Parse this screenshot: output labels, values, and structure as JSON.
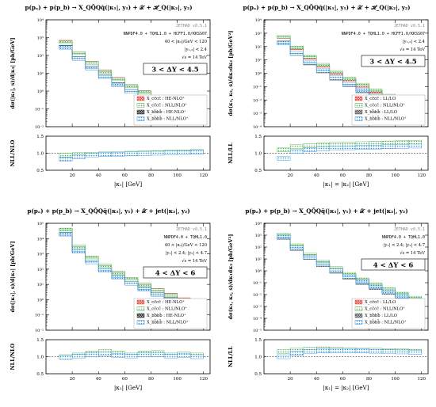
{
  "chart_data": [
    {
      "type": "bar",
      "title": "p(pₐ) + p(p_b) → X_QQ̄Qq̄(|κ₁|, y₁) + 𝒳 + ℋ_Q(|κ₂|, y₂)",
      "jethad": "JETHAD v0.5.1",
      "pdf": "NNPDF4.0 + TQHL1.0 + HCFF1.0/KKSS07",
      "cut1": "40 < |κ₂|/GeV < 120",
      "cut2": "|y₁,₂| < 2.4",
      "energy": "√s = 14 TeV",
      "dy_range": "3 < ΔY < 4.5",
      "xlabel": "|κ₁| [GeV]",
      "ylabel": "dσ(|κ₁|, s)/d|κ₁| [pb/GeV]",
      "ratio_label": "NLL/NLO",
      "xlim": [
        0,
        125
      ],
      "ylim": [
        0.01,
        10000
      ],
      "yscale": "log",
      "ratio_ylim": [
        0.5,
        1.5
      ],
      "xticks": [
        20,
        40,
        60,
        80,
        100,
        120
      ],
      "yticks": [
        "10⁻²",
        "10⁻¹",
        "10⁰",
        "10¹",
        "10²",
        "10³",
        "10⁴"
      ],
      "ratio_yticks": [
        "0.5",
        "1.0",
        "1.5"
      ],
      "legend": [
        "X_cc̄cc̄ : HE-NLO⁺",
        "X_cc̄cc̄ : NLL/NLO⁺",
        "X_bb̄bb̄ : HE-NLO⁺",
        "X_bb̄bb̄ : NLL/NLO⁺"
      ],
      "categories": [
        "10-20",
        "20-30",
        "30-40",
        "40-50",
        "50-60",
        "60-70",
        "70-80",
        "80-90",
        "90-100",
        "100-110",
        "110-120"
      ],
      "series": [
        {
          "name": "X_cc̄cc̄ : HE-NLO⁺",
          "color": "#e8453c",
          "values": [
            600,
            140,
            40,
            13,
            5,
            2,
            0.9,
            0.45,
            0.22,
            0.11,
            0.06
          ]
        },
        {
          "name": "X_cc̄cc̄ : NLL/NLO⁺",
          "color": "#4caf50",
          "values": [
            550,
            135,
            38,
            12,
            4.6,
            1.9,
            0.85,
            0.42,
            0.2,
            0.1,
            0.055
          ]
        },
        {
          "name": "X_bb̄bb̄ : HE-NLO⁺",
          "color": "#222222",
          "values": [
            300,
            70,
            20,
            6.5,
            2.4,
            1.0,
            0.45,
            0.2,
            0.1,
            0.05,
            0.025
          ]
        },
        {
          "name": "X_bb̄bb̄ : NLL/NLO⁺",
          "color": "#2e8fd6",
          "values": [
            280,
            66,
            19,
            6.1,
            2.2,
            0.95,
            0.42,
            0.19,
            0.095,
            0.047,
            0.023
          ]
        }
      ],
      "ratio_series": [
        {
          "name": "X_cc̄cc̄",
          "color": "#4caf50",
          "values": [
            0.95,
            0.96,
            0.97,
            0.98,
            0.99,
            1.0,
            1.01,
            1.02,
            1.03,
            1.04,
            1.05
          ]
        },
        {
          "name": "X_bb̄bb̄",
          "color": "#2e8fd6",
          "values": [
            0.82,
            0.9,
            0.94,
            0.96,
            0.97,
            0.98,
            0.99,
            1.0,
            1.01,
            1.02,
            1.03
          ]
        }
      ]
    },
    {
      "type": "bar",
      "title": "p(pₐ) + p(p_b) → X_QQ̄Qq̄(|κ₁|, y₁) + 𝒳 + ℋ_Q(|κ₂|, y₂)",
      "jethad": "JETHAD v0.5.1",
      "pdf": "NNPDF4.0 + TQHL1.0 + HCFF1.0/KKSS07",
      "cut1": "|y₁,₂| < 2.4",
      "cut2": "",
      "energy": "√s = 14 TeV",
      "dy_range": "3 < ΔY < 4.5",
      "xlabel": "|κ₁| = |κ₂| [GeV]",
      "ylabel": "dσ(κ₁, κ₂, s)/dκ₁dκ₂ [pb/GeV²]",
      "ratio_label": "NLL/LL",
      "xlim": [
        0,
        125
      ],
      "ylim": [
        0.0001,
        10000
      ],
      "yscale": "log",
      "ratio_ylim": [
        0.5,
        1.5
      ],
      "xticks": [
        20,
        40,
        60,
        80,
        100,
        120
      ],
      "yticks": [
        "10⁻⁴",
        "10⁻³",
        "10⁻²",
        "10⁻¹",
        "10⁰",
        "10¹",
        "10²",
        "10³",
        "10⁴"
      ],
      "ratio_yticks": [
        "0.5",
        "1.0",
        "1.5"
      ],
      "legend": [
        "X_cc̄cc̄ : LL/LO",
        "X_cc̄cc̄ : NLL/NLO⁺",
        "X_bb̄bb̄ : LL/LO",
        "X_bb̄bb̄ : NLL/NLO⁺"
      ],
      "categories": [
        "10-20",
        "20-30",
        "30-40",
        "40-50",
        "50-60",
        "60-70",
        "70-80",
        "80-90",
        "90-100",
        "100-110",
        "110-120"
      ],
      "series": [
        {
          "name": "X_cc̄cc̄ : LL/LO",
          "color": "#e8453c",
          "values": [
            500,
            70,
            14,
            3.5,
            1.0,
            0.32,
            0.11,
            0.04,
            0.016,
            0.007,
            0.003
          ]
        },
        {
          "name": "X_cc̄cc̄ : NLL/NLO⁺",
          "color": "#4caf50",
          "values": [
            550,
            85,
            17,
            4.3,
            1.25,
            0.4,
            0.14,
            0.052,
            0.021,
            0.009,
            0.004
          ]
        },
        {
          "name": "X_bb̄bb̄ : LL/LO",
          "color": "#555555",
          "values": [
            200,
            28,
            5.5,
            1.4,
            0.4,
            0.13,
            0.045,
            0.017,
            0.007,
            0.003,
            0.0013
          ]
        },
        {
          "name": "X_bb̄bb̄ : NLL/NLO⁺",
          "color": "#2e8fd6",
          "values": [
            180,
            30,
            6.2,
            1.6,
            0.47,
            0.15,
            0.052,
            0.02,
            0.008,
            0.0035,
            0.0015
          ]
        }
      ],
      "ratio_series": [
        {
          "name": "X_cc̄cc̄",
          "color": "#4caf50",
          "values": [
            1.1,
            1.2,
            1.22,
            1.24,
            1.26,
            1.27,
            1.28,
            1.29,
            1.3,
            1.31,
            1.32
          ]
        },
        {
          "name": "X_bb̄bb̄",
          "color": "#2e8fd6",
          "values": [
            0.85,
            1.05,
            1.1,
            1.13,
            1.15,
            1.16,
            1.17,
            1.18,
            1.19,
            1.2,
            1.21
          ]
        }
      ]
    },
    {
      "type": "bar",
      "title": "p(pₐ) + p(p_b) → X_QQ̄Qq̄(|κ₁|, y₁) + 𝒳 + jet(|κ₂|, y₂)",
      "jethad": "JETHAD v0.5.1",
      "pdf": "NNPDF4.0 + TQHL1.0",
      "cut1": "40 < |κ₂|/GeV < 120",
      "cut2": "|y₁| < 2.4;  |y₂| < 4.7",
      "energy": "√s = 14 TeV",
      "dy_range": "4 < ΔY < 6",
      "xlabel": "|κ₁| [GeV]",
      "ylabel": "dσ(|κ₁|, s)/d|κ₁| [pb/GeV]",
      "ratio_label": "NLL/NLO",
      "xlim": [
        0,
        125
      ],
      "ylim": [
        0.01,
        100000
      ],
      "yscale": "log",
      "ratio_ylim": [
        0.5,
        1.5
      ],
      "xticks": [
        20,
        40,
        60,
        80,
        100,
        120
      ],
      "yticks": [
        "10⁻²",
        "10⁻¹",
        "10⁰",
        "10¹",
        "10²",
        "10³",
        "10⁴",
        "10⁵"
      ],
      "ratio_yticks": [
        "0.5",
        "1.0",
        "1.5"
      ],
      "legend": [
        "X_cc̄cc̄ : HE-NLO⁺",
        "X_cc̄cc̄ : NLL/NLO⁺",
        "X_bb̄bb̄ : HE-NLO⁺",
        "X_bb̄bb̄ : NLL/NLO⁺"
      ],
      "categories": [
        "10-20",
        "20-30",
        "30-40",
        "40-50",
        "50-60",
        "60-70",
        "70-80",
        "80-90",
        "90-100",
        "100-110",
        "110-120"
      ],
      "series": [
        {
          "name": "X_cc̄cc̄ : HE-NLO⁺",
          "color": "#e8453c",
          "values": [
            40000,
            3000,
            600,
            170,
            60,
            24,
            10,
            4.5,
            2.2,
            1.1,
            0.6
          ]
        },
        {
          "name": "X_cc̄cc̄ : NLL/NLO⁺",
          "color": "#4caf50",
          "values": [
            38000,
            2900,
            580,
            165,
            58,
            23,
            9.5,
            4.2,
            2.0,
            1.0,
            0.3
          ]
        },
        {
          "name": "X_bb̄bb̄ : HE-NLO⁺",
          "color": "#222222",
          "values": [
            20000,
            1500,
            300,
            85,
            30,
            12,
            5.0,
            2.2,
            1.1,
            0.55,
            0.3
          ]
        },
        {
          "name": "X_bb̄bb̄ : NLL/NLO⁺",
          "color": "#2e8fd6",
          "values": [
            19000,
            1450,
            290,
            82,
            29,
            11.5,
            4.8,
            2.1,
            1.0,
            0.5,
            0.25
          ]
        }
      ],
      "ratio_series": [
        {
          "name": "X_cc̄cc̄",
          "color": "#4caf50",
          "values": [
            1.0,
            1.05,
            1.1,
            1.15,
            1.1,
            1.05,
            1.1,
            1.12,
            1.05,
            1.08,
            1.05
          ]
        },
        {
          "name": "X_bb̄bb̄",
          "color": "#2e8fd6",
          "values": [
            0.98,
            1.02,
            1.05,
            1.08,
            1.04,
            1.02,
            1.05,
            1.06,
            1.02,
            1.04,
            1.0
          ]
        }
      ]
    },
    {
      "type": "bar",
      "title": "p(pₐ) + p(p_b) → X_QQ̄Qq̄(|κ₁|, y₁) + 𝒳 + jet(|κ₂|, y₂)",
      "jethad": "JETHAD v0.5.1",
      "pdf": "NNPDF4.0 + TQHL1.0",
      "cut1": "|y₁| < 2.4;  |y₂| < 4.7",
      "cut2": "",
      "energy": "√s = 14 TeV",
      "dy_range": "4 < ΔY < 6",
      "xlabel": "|κ₁| = |κ₂| [GeV]",
      "ylabel": "dσ(κ₁, κ₂, s)/dκ₁dκ₂ [pb/GeV²]",
      "ratio_label": "NLL/LL",
      "xlim": [
        0,
        125
      ],
      "ylim": [
        1e-05,
        10000
      ],
      "yscale": "log",
      "ratio_ylim": [
        0.5,
        1.5
      ],
      "xticks": [
        20,
        40,
        60,
        80,
        100,
        120
      ],
      "yticks": [
        "10⁻⁵",
        "10⁻⁴",
        "10⁻³",
        "10⁻²",
        "10⁻¹",
        "10⁰",
        "10¹",
        "10²",
        "10³",
        "10⁴"
      ],
      "ratio_yticks": [
        "0.5",
        "1.0",
        "1.5"
      ],
      "legend": [
        "X_cc̄cc̄ : LL/LO",
        "X_cc̄cc̄ : NLL/NLO⁺",
        "X_bb̄bb̄ : LL/LO",
        "X_bb̄bb̄ : NLL/NLO⁺"
      ],
      "categories": [
        "10-20",
        "20-30",
        "30-40",
        "40-50",
        "50-60",
        "60-70",
        "70-80",
        "80-90",
        "90-100",
        "100-110",
        "110-120"
      ],
      "series": [
        {
          "name": "X_cc̄cc̄ : LL/LO",
          "color": "#e8453c",
          "values": [
            1000,
            120,
            20,
            5,
            1.4,
            0.45,
            0.16,
            0.06,
            0.024,
            0.01,
            0.0045
          ]
        },
        {
          "name": "X_cc̄cc̄ : NLL/NLO⁺",
          "color": "#4caf50",
          "values": [
            1100,
            140,
            24,
            6,
            1.7,
            0.55,
            0.19,
            0.072,
            0.029,
            0.012,
            0.0055
          ]
        },
        {
          "name": "X_bb̄bb̄ : LL/LO",
          "color": "#555555",
          "values": [
            600,
            70,
            12,
            3,
            0.85,
            0.27,
            0.095,
            0.036,
            0.014,
            0.006,
            0.0027
          ]
        },
        {
          "name": "X_bb̄bb̄ : NLL/NLO⁺",
          "color": "#2e8fd6",
          "values": [
            700,
            85,
            14,
            3.6,
            1.0,
            0.33,
            0.115,
            0.044,
            0.017,
            0.0072,
            0.0033
          ]
        }
      ],
      "ratio_series": [
        {
          "name": "X_cc̄cc̄",
          "color": "#4caf50",
          "values": [
            1.15,
            1.2,
            1.22,
            1.23,
            1.22,
            1.21,
            1.2,
            1.19,
            1.18,
            1.17,
            1.16
          ]
        },
        {
          "name": "X_bb̄bb̄",
          "color": "#2e8fd6",
          "values": [
            1.0,
            1.1,
            1.15,
            1.17,
            1.18,
            1.18,
            1.17,
            1.16,
            1.15,
            1.14,
            1.13
          ]
        }
      ]
    }
  ]
}
